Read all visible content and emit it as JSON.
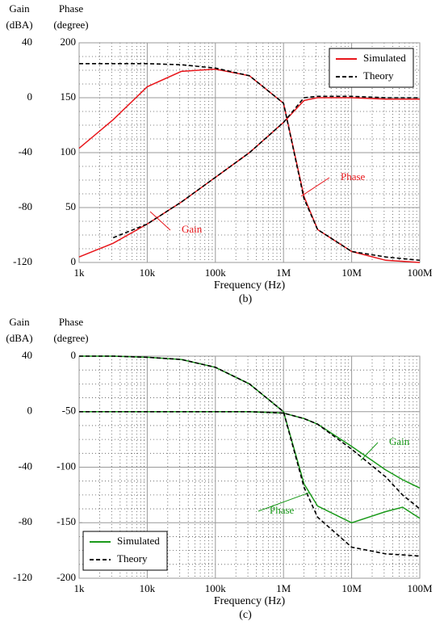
{
  "chart_data": [
    {
      "type": "line",
      "caption": "(b)",
      "xlabel": "Frequency (Hz)",
      "ylabel": [
        "Gain",
        "(dBA)"
      ],
      "y2label": [
        "Phase",
        "(degree)"
      ],
      "xscale": "log",
      "xlim": [
        1000,
        100000000
      ],
      "xticks": [
        {
          "value": 1000,
          "label": "1k"
        },
        {
          "value": 10000,
          "label": "10k"
        },
        {
          "value": 100000,
          "label": "100k"
        },
        {
          "value": 1000000,
          "label": "1M"
        },
        {
          "value": 10000000,
          "label": "10M"
        },
        {
          "value": 100000000,
          "label": "100M"
        }
      ],
      "ylim": [
        -120,
        40
      ],
      "yticks": [
        -120,
        -80,
        -40,
        0,
        40
      ],
      "y2lim": [
        0,
        200
      ],
      "y2ticks": [
        0,
        50,
        100,
        150,
        200
      ],
      "grid": true,
      "legend": "upper right",
      "x": [
        1000,
        3160,
        10000,
        31600,
        100000,
        316000,
        1000000,
        2000000,
        3160000,
        10000000,
        31600000,
        100000000
      ],
      "series": [
        {
          "name": "Simulated",
          "color": "#e8161b",
          "style": "solid",
          "axis": "y",
          "values": [
            -116,
            -106,
            -92,
            -76,
            -58,
            -40,
            -18,
            -2,
            0,
            0,
            -1,
            -1
          ]
        },
        {
          "name": "Simulated",
          "color": "#e8161b",
          "style": "solid",
          "axis": "y2",
          "values": [
            104,
            130,
            160,
            174,
            176,
            170,
            145,
            60,
            30,
            10,
            2,
            0
          ]
        },
        {
          "name": "Theory",
          "color": "#000000",
          "style": "dashed",
          "axis": "y",
          "values": [
            null,
            -102,
            -92,
            -76,
            -58,
            -40,
            -18,
            0,
            1,
            1,
            0,
            0
          ]
        },
        {
          "name": "Theory",
          "color": "#000000",
          "style": "dashed",
          "axis": "y2",
          "values": [
            181,
            181,
            181,
            180,
            177,
            170,
            145,
            58,
            30,
            10,
            5,
            2
          ]
        }
      ],
      "annotations": [
        "Gain",
        "Phase"
      ]
    },
    {
      "type": "line",
      "caption": "(c)",
      "xlabel": "Frequency (Hz)",
      "ylabel": [
        "Gain",
        "(dBA)"
      ],
      "y2label": [
        "Phase",
        "(degree)"
      ],
      "xscale": "log",
      "xlim": [
        1000,
        100000000
      ],
      "xticks": [
        {
          "value": 1000,
          "label": "1k"
        },
        {
          "value": 10000,
          "label": "10k"
        },
        {
          "value": 100000,
          "label": "100k"
        },
        {
          "value": 1000000,
          "label": "1M"
        },
        {
          "value": 10000000,
          "label": "10M"
        },
        {
          "value": 100000000,
          "label": "100M"
        }
      ],
      "ylim": [
        -120,
        40
      ],
      "yticks": [
        -120,
        -80,
        -40,
        0,
        40
      ],
      "y2lim": [
        -200,
        0
      ],
      "y2ticks": [
        -200,
        -150,
        -100,
        -50,
        0
      ],
      "grid": true,
      "legend": "lower left",
      "x": [
        1000,
        3160,
        10000,
        31600,
        100000,
        316000,
        1000000,
        2000000,
        3160000,
        10000000,
        31600000,
        56000000,
        100000000
      ],
      "series": [
        {
          "name": "Simulated",
          "color": "#1a9a1a",
          "style": "solid",
          "axis": "y",
          "values": [
            0,
            0,
            0,
            0,
            0,
            0,
            -1,
            -5,
            -9,
            -25,
            -42,
            -49,
            -55
          ]
        },
        {
          "name": "Simulated",
          "color": "#1a9a1a",
          "style": "solid",
          "axis": "y2",
          "values": [
            0,
            0,
            -1,
            -3,
            -10,
            -25,
            -50,
            -115,
            -135,
            -150,
            -140,
            -136,
            -146
          ]
        },
        {
          "name": "Theory",
          "color": "#000000",
          "style": "dashed",
          "axis": "y",
          "values": [
            0,
            0,
            0,
            0,
            0,
            0,
            -1,
            -5,
            -9,
            -27,
            -47,
            -60,
            -70
          ]
        },
        {
          "name": "Theory",
          "color": "#000000",
          "style": "dashed",
          "axis": "y2",
          "values": [
            0,
            0,
            -1,
            -3,
            -10,
            -25,
            -50,
            -118,
            -145,
            -172,
            -178,
            -179,
            -180
          ]
        }
      ],
      "annotations": [
        "Gain",
        "Phase"
      ]
    }
  ]
}
